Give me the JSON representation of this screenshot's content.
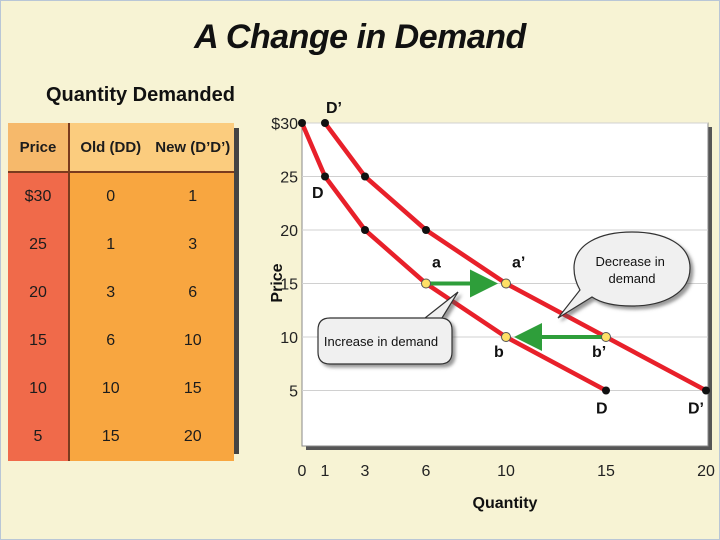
{
  "title": "A Change in Demand",
  "table": {
    "title": "Quantity Demanded",
    "headers": [
      "Price",
      "Old (DD)",
      "New (D’D’)"
    ],
    "rows": [
      [
        "$30",
        "0",
        "1"
      ],
      [
        "25",
        "1",
        "3"
      ],
      [
        "20",
        "3",
        "6"
      ],
      [
        "15",
        "6",
        "10"
      ],
      [
        "10",
        "10",
        "15"
      ],
      [
        "5",
        "15",
        "20"
      ]
    ]
  },
  "chart_data": {
    "type": "line",
    "title": "A Change in Demand",
    "xlabel": "Quantity",
    "ylabel": "Price",
    "xlim": [
      0,
      20
    ],
    "ylim": [
      0,
      30
    ],
    "x_ticks": [
      "0",
      "1",
      "3",
      "6",
      "10",
      "15",
      "20"
    ],
    "x_tick_values": [
      0,
      1,
      3,
      6,
      10,
      15,
      20
    ],
    "y_ticks": [
      "5",
      "10",
      "15",
      "20",
      "25",
      "$30"
    ],
    "y_tick_values": [
      5,
      10,
      15,
      20,
      25,
      30
    ],
    "series": [
      {
        "name": "DD",
        "start_label": "D",
        "end_label": "D",
        "points": [
          [
            0,
            30
          ],
          [
            1,
            25
          ],
          [
            3,
            20
          ],
          [
            6,
            15
          ],
          [
            10,
            10
          ],
          [
            15,
            5
          ]
        ]
      },
      {
        "name": "D’D’",
        "start_label": "D’",
        "end_label": "D’",
        "points": [
          [
            1,
            30
          ],
          [
            3,
            25
          ],
          [
            6,
            20
          ],
          [
            10,
            15
          ],
          [
            15,
            10
          ],
          [
            20,
            5
          ]
        ]
      }
    ],
    "points": [
      {
        "label": "a",
        "x": 6,
        "y": 15
      },
      {
        "label": "a’",
        "x": 10,
        "y": 15
      },
      {
        "label": "b",
        "x": 10,
        "y": 10
      },
      {
        "label": "b’",
        "x": 15,
        "y": 10
      }
    ],
    "arrows": [
      {
        "from": [
          6,
          15
        ],
        "to": [
          10,
          15
        ],
        "color": "#2e9e3a"
      },
      {
        "from": [
          15,
          10
        ],
        "to": [
          10,
          10
        ],
        "color": "#2e9e3a"
      }
    ],
    "annotations": [
      "Increase in demand",
      "Decrease in demand"
    ],
    "curve_color": "#e8202a",
    "arrow_color": "#2e9e3a",
    "point_color": "#ffe066"
  }
}
